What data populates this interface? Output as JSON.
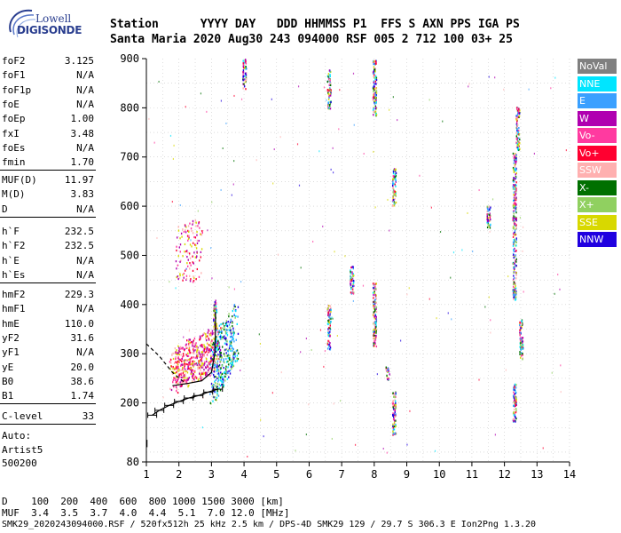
{
  "logo": {
    "line1": "Lowell",
    "line2": "DIGISONDE"
  },
  "header": {
    "row1": "Station      YYYY DAY   DDD HHMMSS P1  FFS S AXN PPS IGA PS",
    "row2": "Santa Maria 2020 Aug30 243 094000 RSF 005 2 712 100 03+ 25"
  },
  "params_group1": [
    {
      "name": "foF2",
      "value": "3.125"
    },
    {
      "name": "foF1",
      "value": "N/A"
    },
    {
      "name": "foF1p",
      "value": "N/A"
    },
    {
      "name": "foE",
      "value": "N/A"
    },
    {
      "name": "foEp",
      "value": "1.00"
    },
    {
      "name": "fxI",
      "value": "3.48"
    },
    {
      "name": "foEs",
      "value": "N/A"
    },
    {
      "name": "fmin",
      "value": "1.70"
    }
  ],
  "params_group2": [
    {
      "name": "MUF(D)",
      "value": "11.97"
    },
    {
      "name": "M(D)",
      "value": "3.83"
    },
    {
      "name": "D",
      "value": "N/A"
    }
  ],
  "params_group3": [
    {
      "name": "h`F",
      "value": "232.5"
    },
    {
      "name": "h`F2",
      "value": "232.5"
    },
    {
      "name": "h`E",
      "value": "N/A"
    },
    {
      "name": "h`Es",
      "value": "N/A"
    }
  ],
  "params_group4": [
    {
      "name": "hmF2",
      "value": "229.3"
    },
    {
      "name": "hmF1",
      "value": "N/A"
    },
    {
      "name": "hmE",
      "value": "110.0"
    },
    {
      "name": "yF2",
      "value": "31.6"
    },
    {
      "name": "yF1",
      "value": "N/A"
    },
    {
      "name": "yE",
      "value": "20.0"
    },
    {
      "name": "B0",
      "value": "38.6"
    },
    {
      "name": "B1",
      "value": "1.74"
    }
  ],
  "params_group5": [
    {
      "name": "C-level",
      "value": "33"
    }
  ],
  "auto": {
    "line1": "Auto:",
    "line2": "Artist5",
    "line3": "500200"
  },
  "legend": [
    {
      "label": "NoVal",
      "color": "#808080"
    },
    {
      "label": "NNE",
      "color": "#00e5ff"
    },
    {
      "label": "E",
      "color": "#3aa0ff"
    },
    {
      "label": "W",
      "color": "#b000b0"
    },
    {
      "label": "Vo-",
      "color": "#ff3aa0"
    },
    {
      "label": "Vo+",
      "color": "#ff0030"
    },
    {
      "label": "SSW",
      "color": "#ffb0b0"
    },
    {
      "label": "X-",
      "color": "#007000"
    },
    {
      "label": "X+",
      "color": "#90d060"
    },
    {
      "label": "SSE",
      "color": "#d8d800"
    },
    {
      "label": "NNW",
      "color": "#2000e0"
    }
  ],
  "plot": {
    "x_ticks": [
      "1",
      "2",
      "3",
      "4",
      "5",
      "6",
      "7",
      "8",
      "9",
      "10",
      "11",
      "12",
      "13",
      "14"
    ],
    "y_ticks": [
      "80",
      "200",
      "300",
      "400",
      "500",
      "600",
      "700",
      "800",
      "900"
    ]
  },
  "scale": {
    "row1": "D    100  200  400  600  800 1000 1500 3000 [km]",
    "row2": "MUF  3.4  3.5  3.7  4.0  4.4  5.1  7.0 12.0 [MHz]"
  },
  "footer": "SMK29_2020243094000.RSF / 520fx512h 25 kHz 2.5 km / DPS-4D SMK29 129 / 29.7 S 306.3 E Ion2Png 1.3.20"
}
